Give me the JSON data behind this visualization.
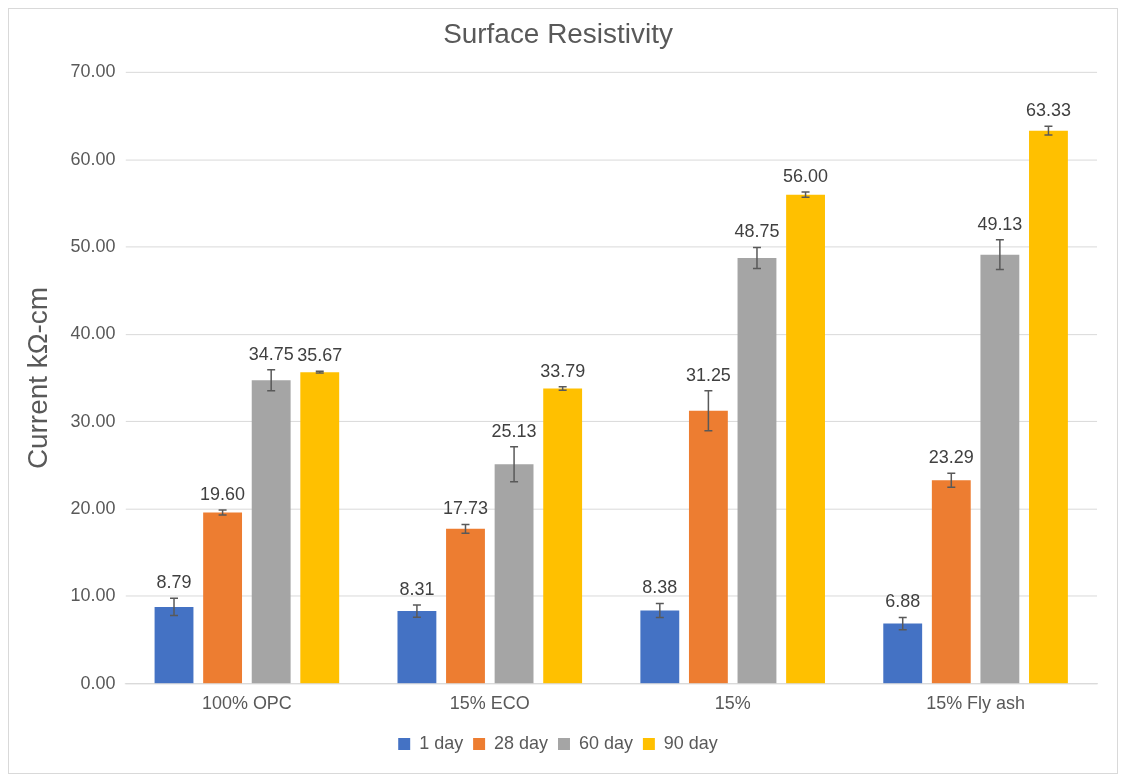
{
  "chart_data": {
    "type": "bar",
    "title": "Surface Resistivity",
    "ylabel": "Current kΩ-cm",
    "categories": [
      "100% OPC",
      "15% ECO",
      "15%",
      "15% Fly ash"
    ],
    "series": [
      {
        "name": "1 day",
        "color": "#4472c4",
        "values": [
          8.79,
          8.31,
          8.38,
          6.88
        ],
        "value_labels": [
          "8.79",
          "8.31",
          "8.38",
          "6.88"
        ],
        "errors": [
          1.0,
          0.7,
          0.8,
          0.7
        ]
      },
      {
        "name": "28 day",
        "color": "#ed7d31",
        "values": [
          19.6,
          17.73,
          31.25,
          23.29
        ],
        "value_labels": [
          "19.60",
          "17.73",
          "31.25",
          "23.29"
        ],
        "errors": [
          0.3,
          0.5,
          2.3,
          0.8
        ]
      },
      {
        "name": "60 day",
        "color": "#a5a5a5",
        "values": [
          34.75,
          25.13,
          48.75,
          49.13
        ],
        "value_labels": [
          "34.75",
          "25.13",
          "48.75",
          "49.13"
        ],
        "errors": [
          1.2,
          2.0,
          1.2,
          1.7
        ]
      },
      {
        "name": "90 day",
        "color": "#ffc000",
        "values": [
          35.67,
          33.79,
          56.0,
          63.33
        ],
        "value_labels": [
          "35.67",
          "33.79",
          "56.00",
          "63.33"
        ],
        "errors": [
          0.1,
          0.2,
          0.3,
          0.5
        ]
      }
    ],
    "ylim": [
      0,
      70
    ],
    "yticks": [
      {
        "value": 0,
        "label": "0.00"
      },
      {
        "value": 10,
        "label": "10.00"
      },
      {
        "value": 20,
        "label": "20.00"
      },
      {
        "value": 30,
        "label": "30.00"
      },
      {
        "value": 40,
        "label": "40.00"
      },
      {
        "value": 50,
        "label": "50.00"
      },
      {
        "value": 60,
        "label": "60.00"
      },
      {
        "value": 70,
        "label": "70.00"
      }
    ],
    "grid": "y",
    "legend": "bottom"
  }
}
